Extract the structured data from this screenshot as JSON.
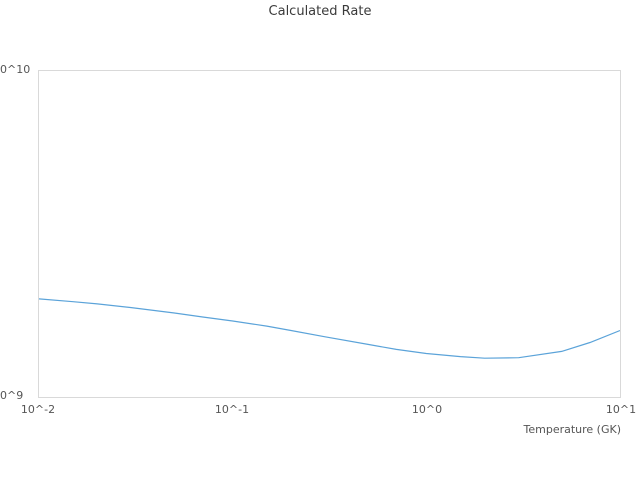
{
  "chart_data": {
    "type": "line",
    "title": "Calculated Rate",
    "xlabel": "Temperature (GK)",
    "ylabel": "",
    "x_scale": "log",
    "y_scale": "log",
    "xlim": [
      0.01,
      10
    ],
    "ylim": [
      1000000000.0,
      10000000000.0
    ],
    "x_tick_values": [
      0.01,
      0.1,
      1,
      10
    ],
    "x_tick_labels": [
      "10^-2",
      "10^-1",
      "10^0",
      "10^1"
    ],
    "y_tick_values": [
      1000000000.0,
      10000000000.0
    ],
    "y_tick_labels": [
      "0^9",
      "0^10"
    ],
    "grid": false,
    "legend": false,
    "line_color": "#5ba3d9",
    "frame_color": "#d9d9d9",
    "series": [
      {
        "name": "Calculated Rate",
        "x": [
          0.01,
          0.015,
          0.02,
          0.03,
          0.05,
          0.07,
          0.1,
          0.15,
          0.2,
          0.3,
          0.5,
          0.7,
          1.0,
          1.5,
          2.0,
          3.0,
          5.0,
          7.0,
          10.0
        ],
        "y": [
          2000000000.0,
          1960000000.0,
          1930000000.0,
          1880000000.0,
          1810000000.0,
          1760000000.0,
          1710000000.0,
          1650000000.0,
          1600000000.0,
          1530000000.0,
          1450000000.0,
          1400000000.0,
          1360000000.0,
          1330000000.0,
          1315000000.0,
          1320000000.0,
          1380000000.0,
          1470000000.0,
          1600000000.0
        ]
      }
    ]
  }
}
